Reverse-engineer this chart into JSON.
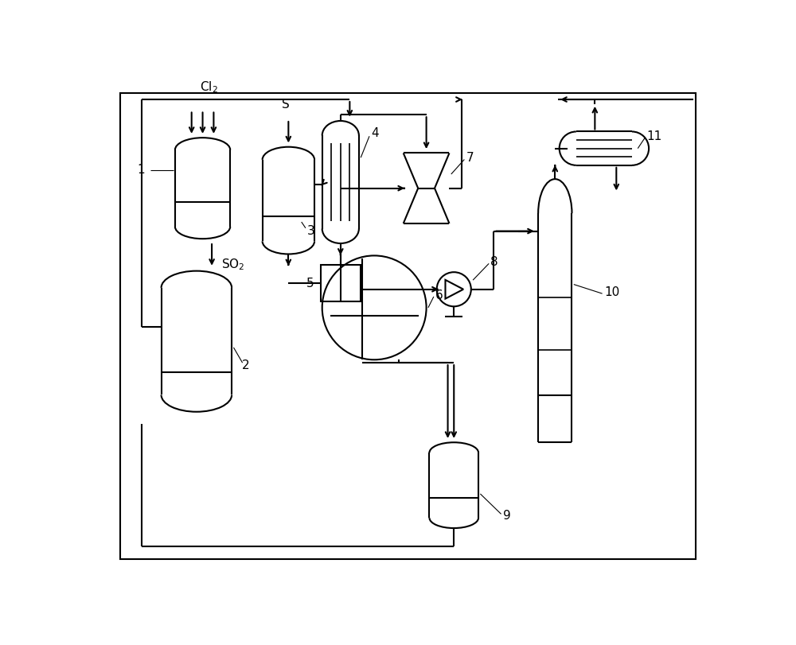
{
  "background_color": "#ffffff",
  "line_color": "#000000",
  "line_width": 1.5
}
